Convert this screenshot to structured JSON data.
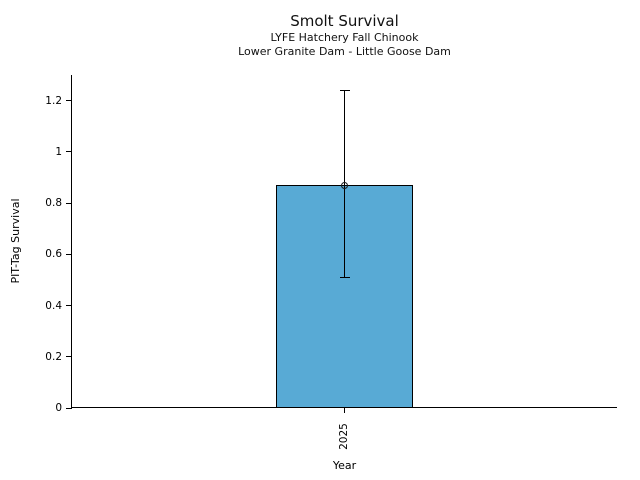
{
  "chart_data": {
    "type": "bar",
    "title": "Smolt Survival",
    "subtitle_lines": [
      "LYFE Hatchery Fall Chinook",
      "Lower Granite Dam - Little Goose Dam"
    ],
    "xlabel": "Year",
    "ylabel": "PIT-Tag Survival",
    "categories": [
      "2025"
    ],
    "values": [
      0.87
    ],
    "error_bars": [
      {
        "lower": 0.51,
        "upper": 1.24
      }
    ],
    "ylim": [
      0,
      1.3
    ],
    "yticks": [
      0,
      0.2,
      0.4,
      0.6,
      0.8,
      1,
      1.2
    ],
    "ytick_labels": [
      "0",
      "0.2",
      "0.4",
      "0.6",
      "0.8",
      "1",
      "1.2"
    ],
    "grid": false,
    "legend_position": "none",
    "colors": {
      "bar_fill": "#58aad5",
      "bar_edge": "#000000",
      "error_bar": "#000000",
      "marker_edge": "#1a1a1a",
      "background": "#ffffff"
    }
  }
}
